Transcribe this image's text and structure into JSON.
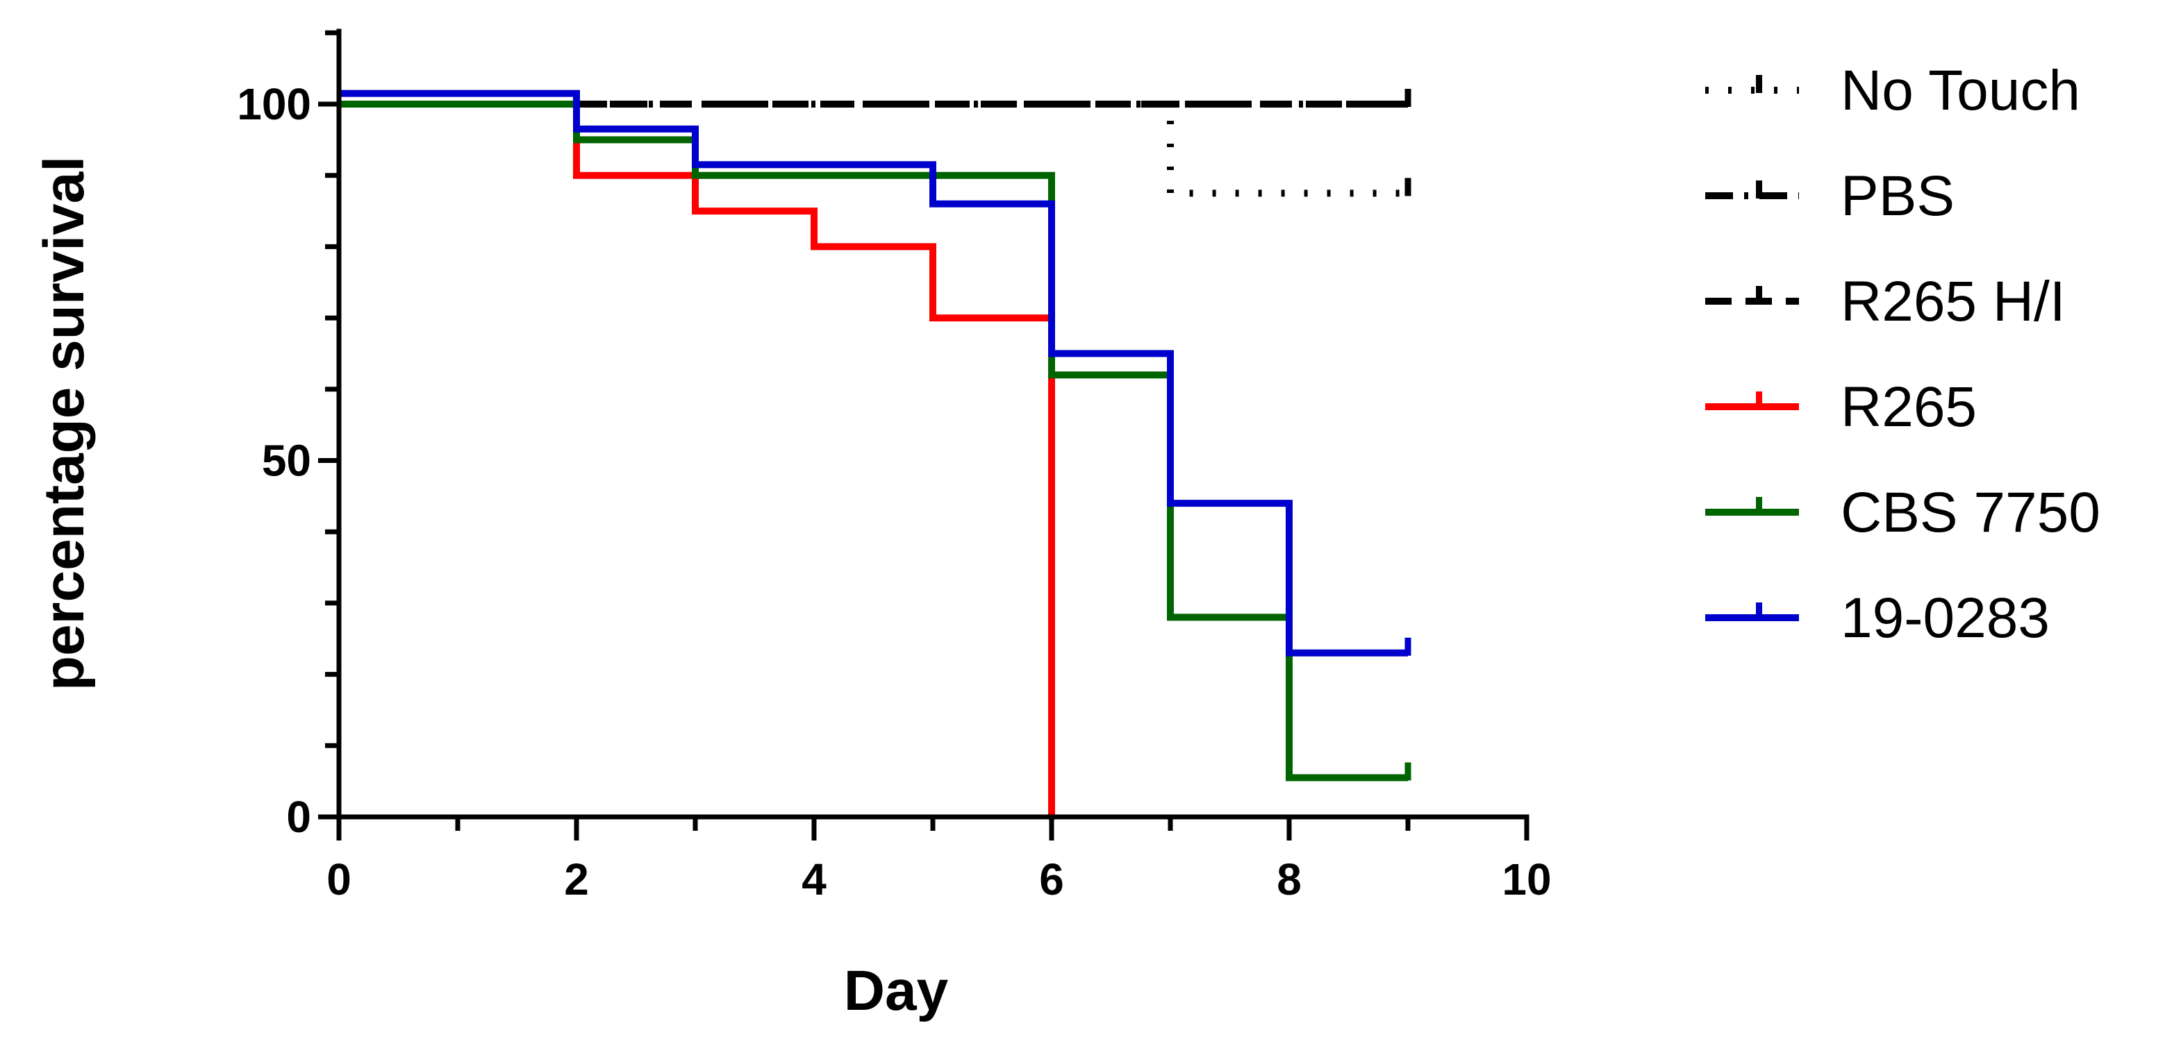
{
  "chart_data": {
    "type": "line",
    "step": true,
    "title": "",
    "xlabel": "Day",
    "ylabel": "percentage survival",
    "xlim": [
      0,
      10
    ],
    "ylim": [
      0,
      100
    ],
    "xticks": [
      "0",
      "2",
      "4",
      "6",
      "8",
      "10"
    ],
    "yticks": [
      "0",
      "50",
      "100"
    ],
    "legend_position": "right",
    "series": [
      {
        "name": "No Touch",
        "color": "#000000",
        "dash": "dotted",
        "x": [
          0,
          7,
          7,
          9
        ],
        "y": [
          100,
          100,
          87.5,
          87.5
        ]
      },
      {
        "name": "PBS",
        "color": "#000000",
        "dash": "dashdot",
        "x": [
          0,
          9
        ],
        "y": [
          100,
          100
        ]
      },
      {
        "name": "R265 H/I",
        "color": "#000000",
        "dash": "dashed",
        "x": [
          0,
          9
        ],
        "y": [
          100,
          100
        ]
      },
      {
        "name": "R265",
        "color": "#ff0000",
        "dash": "solid",
        "x": [
          0,
          2,
          2,
          3,
          3,
          4,
          4,
          5,
          5,
          6,
          6
        ],
        "y": [
          100,
          100,
          90,
          90,
          85,
          85,
          80,
          80,
          70,
          70,
          0
        ]
      },
      {
        "name": "CBS 7750",
        "color": "#006400",
        "dash": "solid",
        "x": [
          0,
          2,
          2,
          3,
          3,
          6,
          6,
          7,
          7,
          8,
          8,
          9
        ],
        "y": [
          100,
          100,
          95,
          95,
          90,
          90,
          62,
          62,
          28,
          28,
          5.5,
          5.5
        ]
      },
      {
        "name": "19-0283",
        "color": "#0000cc",
        "dash": "solid",
        "x": [
          0,
          2,
          2,
          3,
          3,
          5,
          5,
          6,
          6,
          7,
          7,
          8,
          8,
          9
        ],
        "y": [
          101.5,
          101.5,
          96.5,
          96.5,
          91.5,
          91.5,
          86,
          86,
          65,
          65,
          44,
          44,
          23,
          23
        ]
      }
    ]
  }
}
